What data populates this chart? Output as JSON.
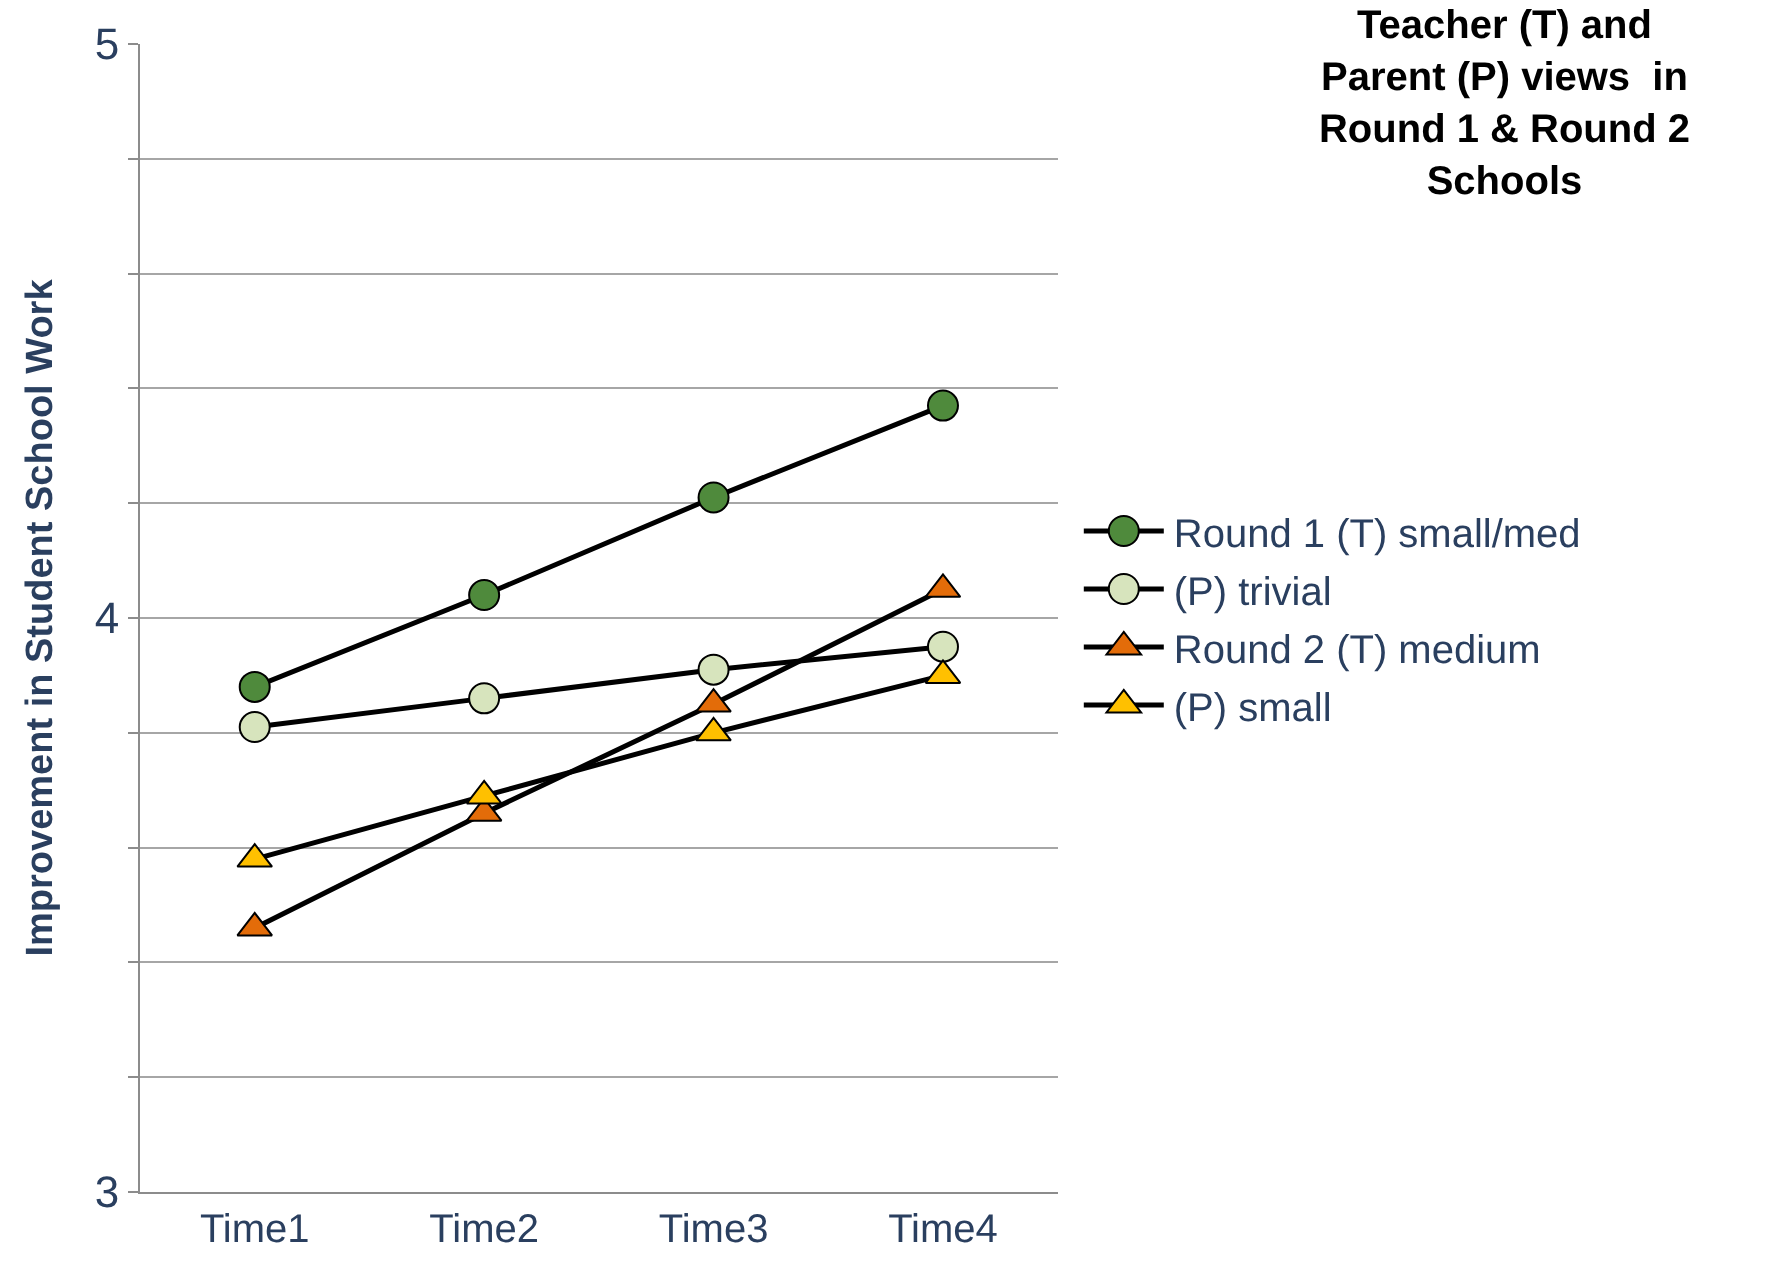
{
  "chart_data": {
    "type": "line",
    "title": "Teacher (T) and Parent (P) views  in Round 1 & Round 2 Schools",
    "ylabel": "Improvement in Student School Work",
    "categories": [
      "Time1",
      "Time2",
      "Time3",
      "Time4"
    ],
    "series": [
      {
        "name": "Round 1 (T) small/med",
        "color": "#4f8a3c",
        "marker": "circle",
        "values": [
          3.88,
          4.04,
          4.21,
          4.37
        ]
      },
      {
        "name": "(P) trivial",
        "color": "#d7e4bd",
        "marker": "circle",
        "values": [
          3.81,
          3.86,
          3.91,
          3.95
        ]
      },
      {
        "name": "Round 2 (T) medium",
        "color": "#e36c09",
        "marker": "triangle",
        "values": [
          3.46,
          3.66,
          3.85,
          4.05
        ]
      },
      {
        "name": "(P) small",
        "color": "#ffc000",
        "marker": "triangle",
        "values": [
          3.58,
          3.69,
          3.8,
          3.9
        ]
      }
    ],
    "ylim": [
      3,
      5
    ],
    "yticks": [
      3,
      {
        "value": 3.2,
        "label": null
      },
      {
        "value": 3.4,
        "label": null
      },
      {
        "value": 3.6,
        "label": null
      },
      {
        "value": 3.8,
        "label": null
      },
      4,
      {
        "value": 4.2,
        "label": null
      },
      {
        "value": 4.4,
        "label": null
      },
      {
        "value": 4.6,
        "label": null
      },
      {
        "value": 4.8,
        "label": null
      },
      5
    ],
    "grid": "y",
    "legend": "right",
    "line_style": "solid"
  }
}
